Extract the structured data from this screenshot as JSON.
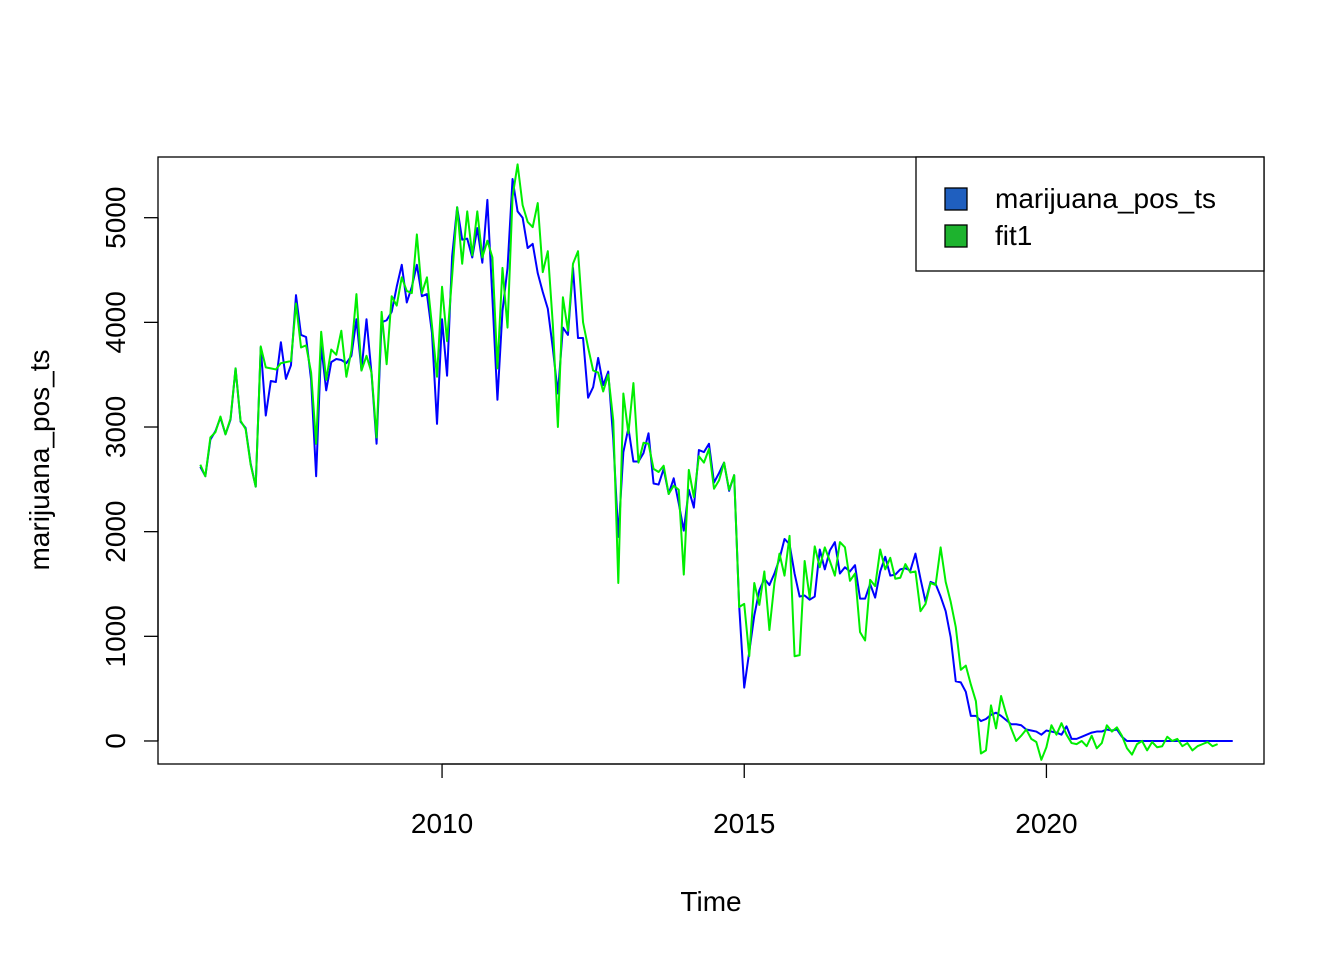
{
  "chart_data": {
    "type": "line",
    "title": "",
    "xlabel": "Time",
    "ylabel": "marijuana_pos_ts",
    "xlim": [
      2005.3,
      2023.6
    ],
    "ylim": [
      -220,
      5580
    ],
    "x_ticks": [
      2010,
      2015,
      2020
    ],
    "y_ticks": [
      0,
      1000,
      2000,
      3000,
      4000,
      5000
    ],
    "grid": false,
    "legend_position": "top-right",
    "x_start": 2006.0,
    "x_step": 0.08333,
    "series": [
      {
        "name": "marijuana_pos_ts",
        "color": "#0000ff",
        "legend_color": "#1f5fbf",
        "values": [
          2620,
          2530,
          2880,
          2960,
          3090,
          2930,
          3070,
          3560,
          3050,
          2990,
          2650,
          2430,
          3760,
          3110,
          3440,
          3430,
          3810,
          3460,
          3590,
          4260,
          3880,
          3860,
          3450,
          2530,
          3780,
          3350,
          3620,
          3650,
          3640,
          3610,
          3680,
          4030,
          3540,
          4030,
          3510,
          2840,
          4000,
          4020,
          4100,
          4340,
          4550,
          4190,
          4340,
          4550,
          4250,
          4270,
          3900,
          3030,
          4030,
          3490,
          4630,
          5100,
          4790,
          4800,
          4620,
          4900,
          4570,
          5170,
          4230,
          3260,
          4110,
          4520,
          5370,
          5060,
          5000,
          4710,
          4750,
          4470,
          4290,
          4130,
          3750,
          3320,
          3950,
          3880,
          4520,
          3850,
          3850,
          3280,
          3380,
          3660,
          3400,
          3530,
          2880,
          1950,
          2760,
          2990,
          2670,
          2670,
          2750,
          2940,
          2460,
          2450,
          2600,
          2360,
          2510,
          2270,
          2010,
          2400,
          2230,
          2780,
          2760,
          2840,
          2470,
          2560,
          2660,
          2390,
          2540,
          1290,
          510,
          850,
          1200,
          1440,
          1550,
          1490,
          1600,
          1740,
          1930,
          1880,
          1600,
          1380,
          1390,
          1350,
          1380,
          1830,
          1640,
          1820,
          1900,
          1600,
          1660,
          1620,
          1680,
          1360,
          1360,
          1500,
          1370,
          1620,
          1760,
          1580,
          1590,
          1640,
          1650,
          1630,
          1790,
          1550,
          1330,
          1520,
          1500,
          1380,
          1240,
          990,
          570,
          560,
          470,
          240,
          240,
          190,
          210,
          250,
          270,
          240,
          200,
          160,
          160,
          150,
          110,
          100,
          90,
          60,
          100,
          90,
          80,
          60,
          140,
          20,
          20,
          40,
          60,
          80,
          90,
          90,
          110,
          100,
          110,
          40,
          0,
          0,
          0,
          0,
          0,
          0,
          0,
          0,
          0,
          0,
          0,
          0,
          0,
          0,
          0,
          0,
          0,
          0,
          0,
          0,
          0,
          0
        ]
      },
      {
        "name": "fit1",
        "color": "#00ee00",
        "legend_color": "#1db32e",
        "values": [
          2640,
          2530,
          2900,
          2950,
          3100,
          2930,
          3080,
          3560,
          3060,
          2980,
          2640,
          2430,
          3770,
          3570,
          3560,
          3550,
          3610,
          3620,
          3630,
          4180,
          3760,
          3780,
          3520,
          2840,
          3910,
          3450,
          3740,
          3690,
          3920,
          3480,
          3730,
          4270,
          3540,
          3680,
          3520,
          2900,
          4100,
          3600,
          4250,
          4160,
          4430,
          4300,
          4280,
          4840,
          4280,
          4430,
          3970,
          3480,
          4340,
          3820,
          4440,
          5100,
          4560,
          5060,
          4640,
          5060,
          4620,
          4780,
          4620,
          3560,
          4520,
          3950,
          5200,
          5510,
          5120,
          4960,
          4910,
          5140,
          4480,
          4680,
          3980,
          3000,
          4240,
          3920,
          4560,
          4680,
          4000,
          3760,
          3540,
          3520,
          3340,
          3500,
          3060,
          1510,
          3320,
          2940,
          3420,
          2660,
          2850,
          2840,
          2600,
          2570,
          2630,
          2360,
          2440,
          2400,
          1590,
          2590,
          2330,
          2720,
          2660,
          2790,
          2410,
          2490,
          2660,
          2400,
          2540,
          1280,
          1310,
          810,
          1510,
          1300,
          1620,
          1060,
          1510,
          1790,
          1580,
          1960,
          810,
          820,
          1720,
          1370,
          1860,
          1660,
          1850,
          1720,
          1580,
          1900,
          1850,
          1530,
          1600,
          1040,
          960,
          1540,
          1480,
          1830,
          1640,
          1750,
          1550,
          1560,
          1690,
          1610,
          1620,
          1240,
          1310,
          1510,
          1490,
          1850,
          1520,
          1330,
          1090,
          680,
          720,
          540,
          380,
          -120,
          -90,
          340,
          120,
          430,
          260,
          120,
          0,
          50,
          110,
          20,
          -10,
          -180,
          -60,
          150,
          60,
          170,
          60,
          -20,
          -30,
          0,
          -50,
          50,
          -70,
          -20,
          150,
          90,
          130,
          50,
          -70,
          -130,
          -30,
          0,
          -90,
          -10,
          -60,
          -50,
          40,
          0,
          20,
          -50,
          -20,
          -90,
          -50,
          -30,
          -10,
          -50,
          -30
        ]
      }
    ]
  }
}
